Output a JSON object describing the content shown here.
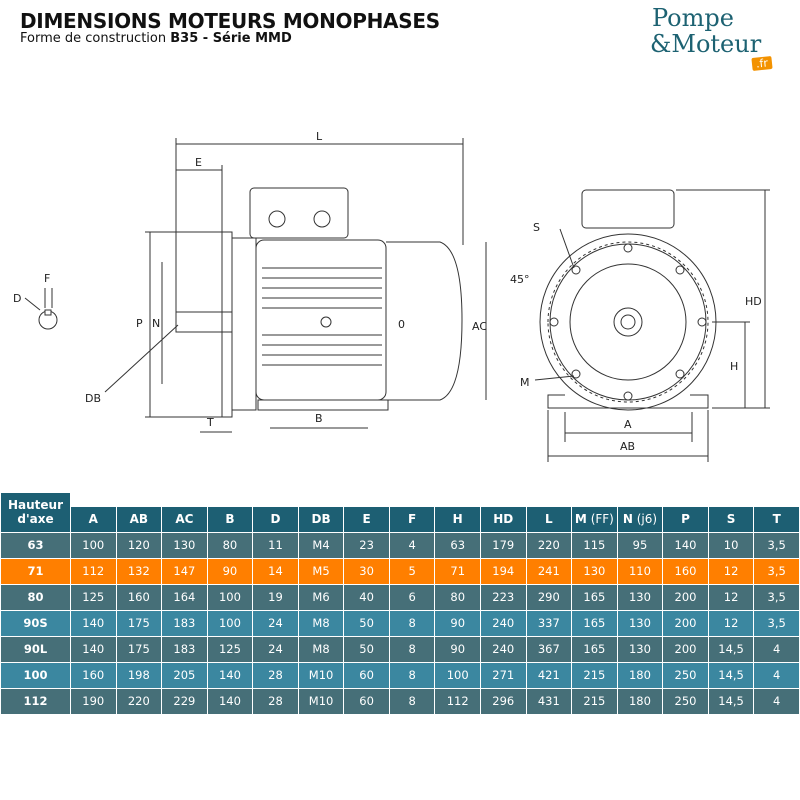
{
  "header": {
    "title": "DIMENSIONS MOTEURS MONOPHASES",
    "subtitle_prefix": "Forme de construction ",
    "subtitle_bold": "B35 - Série MMD"
  },
  "logo": {
    "line1": "Pompe",
    "line2": "&Moteur",
    "badge": ".fr",
    "color": "#1d6272",
    "badge_color": "#f39200"
  },
  "drawing": {
    "side_labels": {
      "L": "L",
      "E": "E",
      "F": "F",
      "D": "D",
      "P": "P",
      "N": "N",
      "DB": "DB",
      "T": "T",
      "B": "B",
      "AC": "AC",
      "O": "0"
    },
    "front_labels": {
      "S": "S",
      "angle": "45°",
      "M": "M",
      "A": "A",
      "AB": "AB",
      "H": "H",
      "HD": "HD"
    }
  },
  "table": {
    "first_header": [
      "Hauteur",
      "d'axe"
    ],
    "columns": [
      {
        "main": "A",
        "sub": ""
      },
      {
        "main": "AB",
        "sub": ""
      },
      {
        "main": "AC",
        "sub": ""
      },
      {
        "main": "B",
        "sub": ""
      },
      {
        "main": "D",
        "sub": ""
      },
      {
        "main": "DB",
        "sub": ""
      },
      {
        "main": "E",
        "sub": ""
      },
      {
        "main": "F",
        "sub": ""
      },
      {
        "main": "H",
        "sub": ""
      },
      {
        "main": "HD",
        "sub": ""
      },
      {
        "main": "L",
        "sub": ""
      },
      {
        "main": "M",
        "sub": " (FF)"
      },
      {
        "main": "N",
        "sub": " (j6)"
      },
      {
        "main": "P",
        "sub": ""
      },
      {
        "main": "S",
        "sub": ""
      },
      {
        "main": "T",
        "sub": ""
      }
    ],
    "highlight_color": "#ff7f00",
    "rows": [
      [
        "63",
        "100",
        "120",
        "130",
        "80",
        "11",
        "M4",
        "23",
        "4",
        "63",
        "179",
        "220",
        "115",
        "95",
        "140",
        "10",
        "3,5"
      ],
      [
        "71",
        "112",
        "132",
        "147",
        "90",
        "14",
        "M5",
        "30",
        "5",
        "71",
        "194",
        "241",
        "130",
        "110",
        "160",
        "12",
        "3,5"
      ],
      [
        "80",
        "125",
        "160",
        "164",
        "100",
        "19",
        "M6",
        "40",
        "6",
        "80",
        "223",
        "290",
        "165",
        "130",
        "200",
        "12",
        "3,5"
      ],
      [
        "90S",
        "140",
        "175",
        "183",
        "100",
        "24",
        "M8",
        "50",
        "8",
        "90",
        "240",
        "337",
        "165",
        "130",
        "200",
        "12",
        "3,5"
      ],
      [
        "90L",
        "140",
        "175",
        "183",
        "125",
        "24",
        "M8",
        "50",
        "8",
        "90",
        "240",
        "367",
        "165",
        "130",
        "200",
        "14,5",
        "4"
      ],
      [
        "100",
        "160",
        "198",
        "205",
        "140",
        "28",
        "M10",
        "60",
        "8",
        "100",
        "271",
        "421",
        "215",
        "180",
        "250",
        "14,5",
        "4"
      ],
      [
        "112",
        "190",
        "220",
        "229",
        "140",
        "28",
        "M10",
        "60",
        "8",
        "112",
        "296",
        "431",
        "215",
        "180",
        "250",
        "14,5",
        "4"
      ]
    ]
  }
}
